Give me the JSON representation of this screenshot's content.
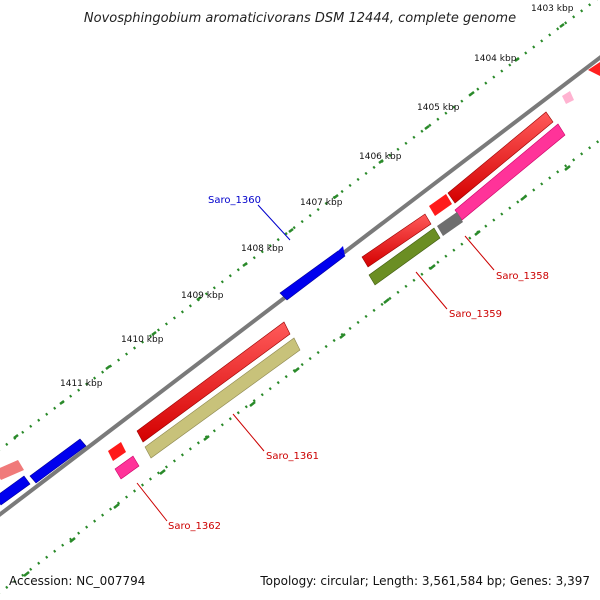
{
  "header": {
    "title": "Novosphingobium aromaticivorans DSM 12444, complete genome"
  },
  "footer": {
    "accession": "Accession: NC_007794",
    "topology": "Topology: circular; Length: 3,561,584 bp; Genes: 3,397"
  },
  "scale": {
    "ticks": [
      {
        "label": "1403 kbp"
      },
      {
        "label": "1404 kbp"
      },
      {
        "label": "1405 kbp"
      },
      {
        "label": "1406 kbp"
      },
      {
        "label": "1407 kbp"
      },
      {
        "label": "1408 kbp"
      },
      {
        "label": "1409 kbp"
      },
      {
        "label": "1410 kbp"
      },
      {
        "label": "1411 kbp"
      }
    ]
  },
  "genes": [
    {
      "label": "Saro_1360",
      "color": "#0000cc"
    },
    {
      "label": "Saro_1358",
      "color": "#cc0000"
    },
    {
      "label": "Saro_1359",
      "color": "#cc0000"
    },
    {
      "label": "Saro_1361",
      "color": "#cc0000"
    },
    {
      "label": "Saro_1362",
      "color": "#cc0000"
    }
  ],
  "colors": {
    "backbone": "#808080",
    "tick_dot": "#2a8a2a",
    "cds_forward": "#0000ff",
    "cds_reverse": "#ff0000",
    "pink": "#ff3399",
    "olive_light": "#c8c27a",
    "olive_dark": "#6b8e23",
    "gray": "#6e6e6e"
  }
}
